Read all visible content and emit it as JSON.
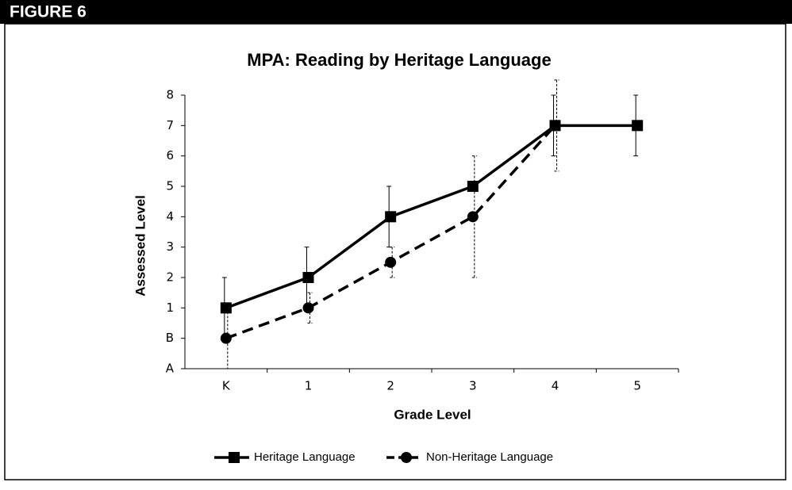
{
  "header": {
    "label": "FIGURE 6"
  },
  "chart_data": {
    "type": "line",
    "title": "MPA: Reading by Heritage Language",
    "x_label": "Grade Level",
    "y_label": "Assessed Level",
    "categories": [
      "K",
      "1",
      "2",
      "3",
      "4",
      "5"
    ],
    "ylim": [
      -1,
      8
    ],
    "yticks": [
      {
        "value": -1,
        "label": "A"
      },
      {
        "value": 0,
        "label": "B"
      },
      1,
      2,
      3,
      4,
      5,
      6,
      7,
      8
    ],
    "legend": "bottom",
    "series": [
      {
        "name": "Heritage Language",
        "color": "#000000",
        "marker": "square",
        "dash": false,
        "values": [
          1,
          2,
          4,
          5,
          7,
          7
        ],
        "errors": [
          1,
          1,
          1,
          0,
          1,
          1
        ]
      },
      {
        "name": "Non-Heritage Language",
        "color": "#000000",
        "marker": "circle",
        "dash": true,
        "values": [
          0,
          1,
          2.5,
          4,
          7,
          null
        ],
        "errors": [
          1,
          0.5,
          0.5,
          2,
          1.5,
          null
        ]
      }
    ]
  }
}
